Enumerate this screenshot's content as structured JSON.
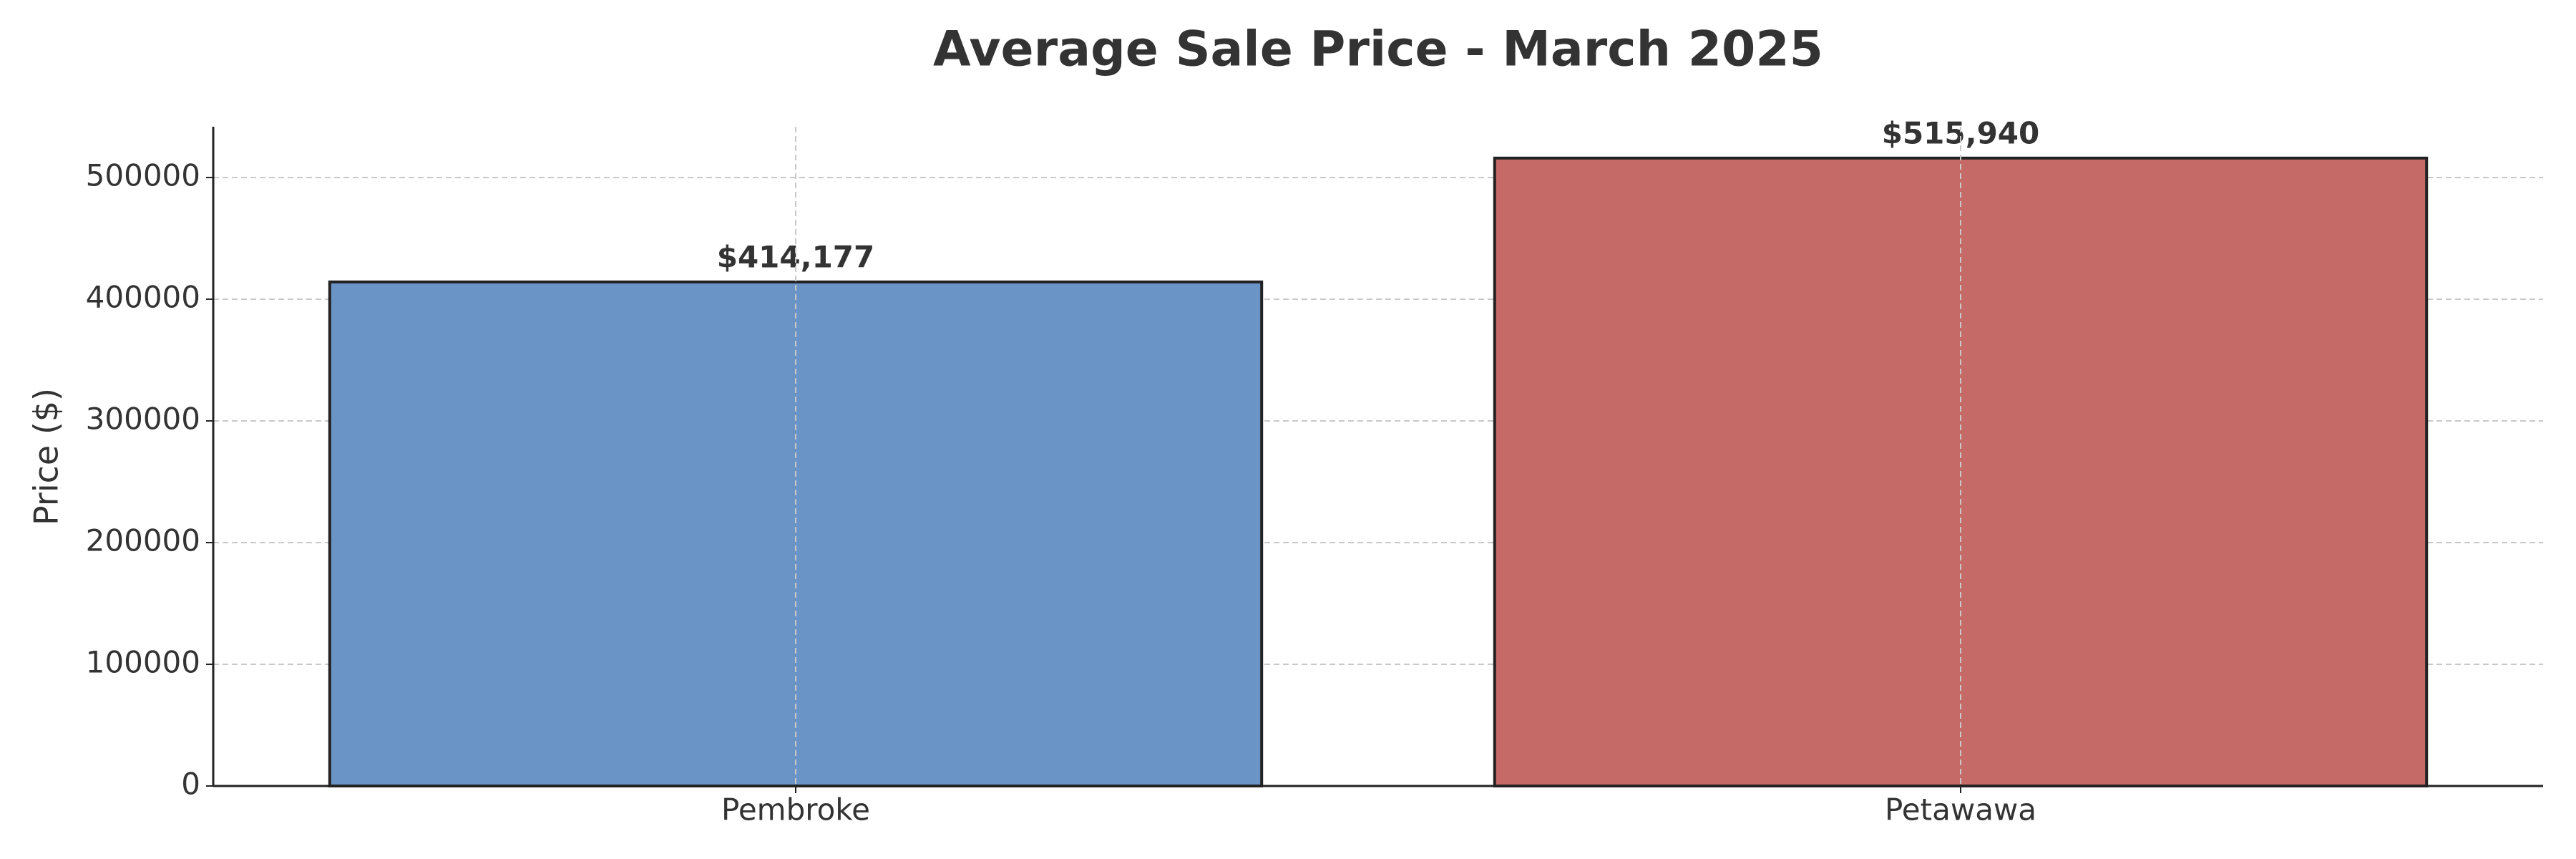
{
  "chart_data": {
    "type": "bar",
    "title": "Average Sale Price - March 2025",
    "ylabel": "Price ($)",
    "categories": [
      "Pembroke",
      "Petawawa"
    ],
    "values": [
      414177,
      515940
    ],
    "value_labels": [
      "$414,177",
      "$515,940"
    ],
    "colors": [
      "#6a93c6",
      "#c66a68"
    ],
    "ylim": [
      0,
      541737
    ],
    "yticks": [
      0,
      100000,
      200000,
      300000,
      400000,
      500000
    ],
    "grid": true
  }
}
